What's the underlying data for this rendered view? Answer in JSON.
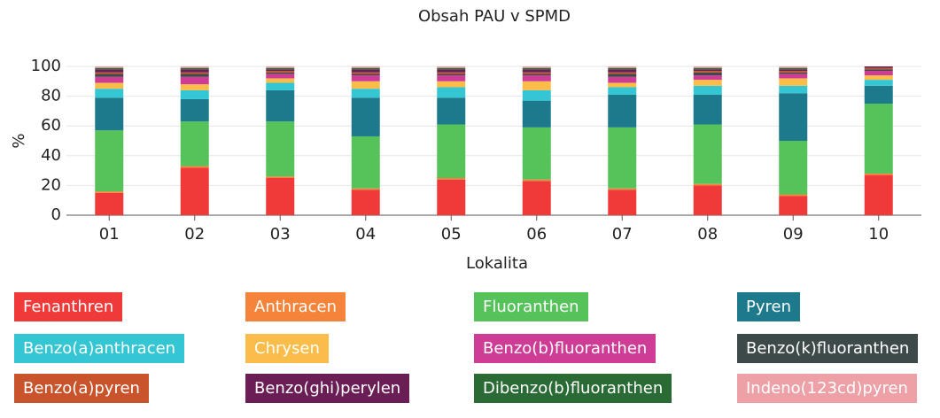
{
  "chart_data": {
    "type": "stacked_bar",
    "title": "Obsah PAU v SPMD",
    "xlabel": "Lokalita",
    "ylabel": "%",
    "categories": [
      "01",
      "02",
      "03",
      "04",
      "05",
      "06",
      "07",
      "08",
      "09",
      "10"
    ],
    "ylim": [
      0,
      100
    ],
    "yticks": [
      0,
      20,
      40,
      60,
      80,
      100
    ],
    "grid": true,
    "series": [
      {
        "name": "Fenanthren",
        "color": "#f03a3a",
        "values": [
          15,
          32,
          25,
          17,
          24,
          23,
          17,
          20,
          13,
          27
        ]
      },
      {
        "name": "Anthracen",
        "color": "#f5843a",
        "values": [
          1,
          1,
          1,
          1,
          1,
          1,
          1,
          1,
          1,
          1
        ]
      },
      {
        "name": "Fluoranthen",
        "color": "#56c25a",
        "values": [
          41,
          30,
          37,
          35,
          36,
          35,
          41,
          40,
          36,
          47
        ]
      },
      {
        "name": "Pyren",
        "color": "#1d7a8c",
        "values": [
          22,
          15,
          21,
          26,
          18,
          18,
          22,
          20,
          32,
          12
        ]
      },
      {
        "name": "Benzo(a)anthracen",
        "color": "#35c6d4",
        "values": [
          6,
          6,
          5,
          6,
          7,
          7,
          5,
          6,
          5,
          4
        ]
      },
      {
        "name": "Chrysen",
        "color": "#fbbd4a",
        "values": [
          4,
          4,
          3,
          5,
          4,
          6,
          3,
          4,
          5,
          3
        ]
      },
      {
        "name": "Benzo(b)fluoranthen",
        "color": "#cf3c96",
        "values": [
          4,
          5,
          3,
          4,
          4,
          4,
          4,
          3,
          3,
          3
        ]
      },
      {
        "name": "Benzo(k)fluoranthen",
        "color": "#3e4a4a",
        "values": [
          2,
          2,
          1,
          1,
          1,
          1,
          2,
          2,
          1,
          1
        ]
      },
      {
        "name": "Benzo(a)pyren",
        "color": "#c9532a",
        "values": [
          1,
          1,
          1,
          1,
          1,
          1,
          1,
          1,
          1,
          1
        ]
      },
      {
        "name": "Benzo(ghi)perylen",
        "color": "#6b1e55",
        "values": [
          2,
          2,
          1,
          2,
          2,
          2,
          2,
          1,
          1,
          1
        ]
      },
      {
        "name": "Dibenzo(b)fluoranthen",
        "color": "#2a6b35",
        "values": [
          1,
          1,
          1,
          1,
          1,
          1,
          1,
          1,
          1,
          0
        ]
      },
      {
        "name": "Indeno(123cd)pyren",
        "color": "#eda0a6",
        "values": [
          1,
          1,
          1,
          1,
          1,
          1,
          1,
          1,
          1,
          0
        ]
      }
    ]
  }
}
